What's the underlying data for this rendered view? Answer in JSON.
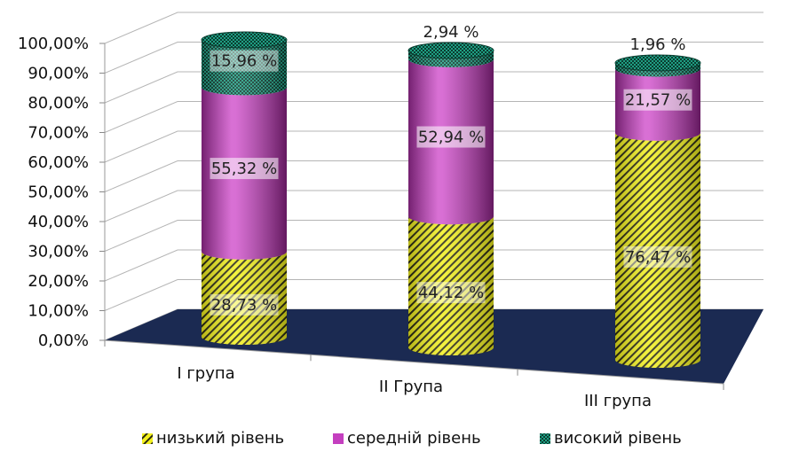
{
  "chart_data": {
    "type": "bar",
    "stacked": true,
    "three_d": true,
    "shape": "cylinder",
    "categories": [
      "I група",
      "II Група",
      "III група"
    ],
    "series": [
      {
        "name": "низький рівень",
        "values": [
          28.73,
          44.12,
          76.47
        ],
        "labels": [
          "28,73 %",
          "44,12 %",
          "76,47 %"
        ],
        "color": "#f2f01e",
        "pattern": "diagonal-stripes"
      },
      {
        "name": "середній рівень",
        "values": [
          55.32,
          52.94,
          21.57
        ],
        "labels": [
          "55,32 %",
          "52,94 %",
          "21,57 %"
        ],
        "color": "#c43fbf"
      },
      {
        "name": "високий рівень",
        "values": [
          15.96,
          2.94,
          1.96
        ],
        "labels": [
          "15,96 %",
          "2,94 %",
          "1,96 %"
        ],
        "color": "#1f9e83",
        "pattern": "checker"
      }
    ],
    "y_ticks": [
      "0,00%",
      "10,00%",
      "20,00%",
      "30,00%",
      "40,00%",
      "50,00%",
      "60,00%",
      "70,00%",
      "80,00%",
      "90,00%",
      "100,00%"
    ],
    "ylim": [
      0,
      100
    ],
    "grid": true,
    "floor_color": "#1b2a52",
    "legend_position": "bottom"
  }
}
